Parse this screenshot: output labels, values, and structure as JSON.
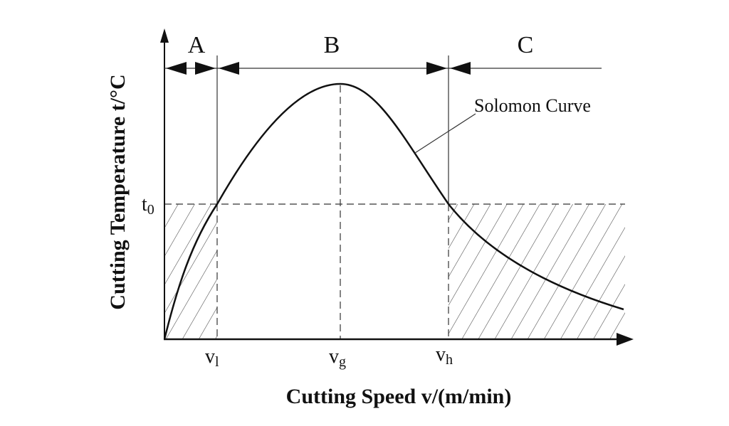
{
  "diagram": {
    "title_curve_label": "Solomon Curve",
    "ylabel": "Cutting Temperature t/°C",
    "xlabel": "Cutting Speed v/(m/min)",
    "regions": [
      "A",
      "B",
      "C"
    ],
    "t0": {
      "base": "t",
      "sub": "0"
    },
    "ticks": [
      {
        "base": "v",
        "sub": "l"
      },
      {
        "base": "v",
        "sub": "g"
      },
      {
        "base": "v",
        "sub": "h"
      }
    ],
    "colors": {
      "line": "#111111",
      "hatch": "#444444",
      "background": "#ffffff"
    }
  }
}
